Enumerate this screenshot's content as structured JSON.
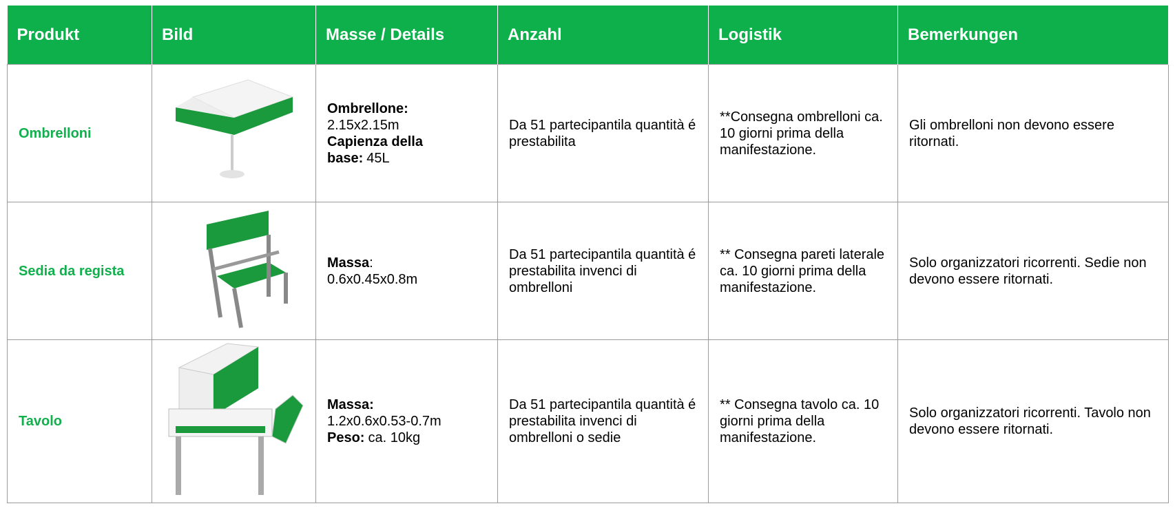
{
  "table": {
    "header": [
      "Produkt",
      "Bild",
      "Masse / Details",
      "Anzahl",
      "Logistik",
      "Bemerkungen"
    ],
    "rows": [
      {
        "product": "Ombrelloni",
        "details": [
          {
            "bold": "Ombrellone:"
          },
          {
            "text": "2.15x2.15m"
          },
          {
            "bold": "Capienza della base:",
            "text": "45L"
          }
        ],
        "quantity": "Da 51 partecipantila quantità é prestabilita",
        "logistics": "**Consegna ombrelloni ca. 10 giorni prima della manifestazione.",
        "remarks": "Gli ombrelloni non devono essere ritornati."
      },
      {
        "product": "Sedia da regista",
        "details": [
          {
            "bold": "Massa",
            "suffix": ":"
          },
          {
            "text": "0.6x0.45x0.8m"
          }
        ],
        "quantity": "Da 51 partecipantila quantità é prestabilita invenci di ombrelloni",
        "logistics": "** Consegna pareti laterale ca. 10 giorni prima della manifestazione.",
        "remarks": "Solo organizzatori ricorrenti. Sedie non devono essere ritornati."
      },
      {
        "product": "Tavolo",
        "details": [
          {
            "bold": "Massa:"
          },
          {
            "text": "1.2x0.6x0.53-0.7m"
          },
          {
            "bold": "Peso:",
            "text": "ca. 10kg"
          }
        ],
        "quantity": "Da 51 partecipantila quantità é prestabilita invenci di ombrelloni o sedie",
        "logistics": "** Consegna tavolo ca. 10 giorni prima della manifestazione.",
        "remarks": "Solo organizzatori ricorrenti. Tavolo non devono essere ritornati."
      }
    ]
  }
}
